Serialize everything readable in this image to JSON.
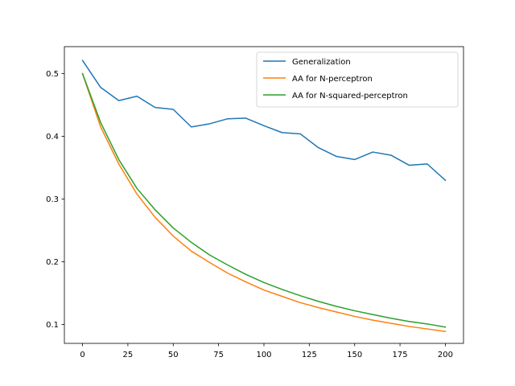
{
  "chart_data": {
    "type": "line",
    "title": "",
    "xlabel": "",
    "ylabel": "",
    "xlim": [
      -10,
      210
    ],
    "ylim": [
      0.07,
      0.543
    ],
    "xticks": [
      0,
      25,
      50,
      75,
      100,
      125,
      150,
      175,
      200
    ],
    "yticks": [
      0.1,
      0.2,
      0.3,
      0.4,
      0.5
    ],
    "grid": false,
    "legend_position": "top-right",
    "x": [
      0,
      10,
      20,
      30,
      40,
      50,
      60,
      70,
      80,
      90,
      100,
      110,
      120,
      130,
      140,
      150,
      160,
      170,
      180,
      190,
      200
    ],
    "series": [
      {
        "name": "Generalization",
        "color": "#1f77b4",
        "values": [
          0.521,
          0.478,
          0.457,
          0.464,
          0.446,
          0.443,
          0.415,
          0.42,
          0.428,
          0.429,
          0.417,
          0.406,
          0.404,
          0.382,
          0.368,
          0.363,
          0.375,
          0.37,
          0.354,
          0.356,
          0.33
        ]
      },
      {
        "name": "AA for N-perceptron",
        "color": "#ff7f0e",
        "values": [
          0.5,
          0.415,
          0.356,
          0.308,
          0.271,
          0.241,
          0.217,
          0.199,
          0.182,
          0.168,
          0.155,
          0.145,
          0.135,
          0.127,
          0.12,
          0.113,
          0.107,
          0.102,
          0.097,
          0.093,
          0.089
        ]
      },
      {
        "name": "AA for N-squared-perceptron",
        "color": "#2ca02c",
        "values": [
          0.5,
          0.422,
          0.363,
          0.317,
          0.283,
          0.254,
          0.231,
          0.211,
          0.195,
          0.18,
          0.167,
          0.156,
          0.146,
          0.137,
          0.129,
          0.122,
          0.116,
          0.11,
          0.105,
          0.101,
          0.096
        ]
      }
    ]
  }
}
